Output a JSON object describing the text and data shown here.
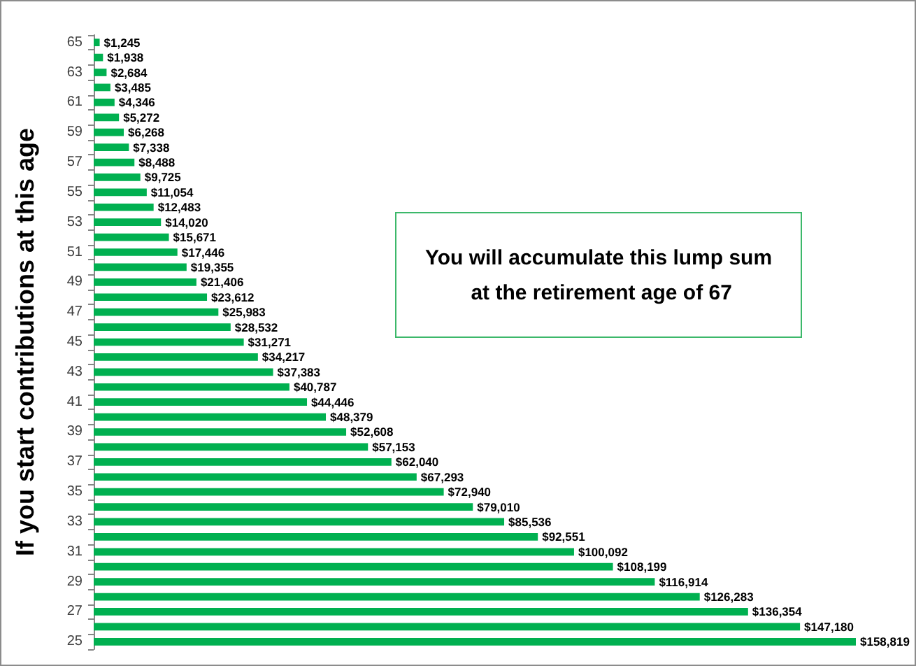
{
  "chart_data": {
    "type": "bar",
    "orientation": "horizontal",
    "ylabel": "If you start contributions at this age",
    "tick_labels": "y",
    "color": "#00b050",
    "categories": [
      "65",
      null,
      "63",
      null,
      "61",
      null,
      "59",
      null,
      "57",
      null,
      "55",
      null,
      "53",
      null,
      "51",
      null,
      "49",
      null,
      "47",
      null,
      "45",
      null,
      "43",
      null,
      "41",
      null,
      "39",
      null,
      "37",
      null,
      "35",
      null,
      "33",
      null,
      "31",
      null,
      "29",
      null,
      "27",
      null,
      "25"
    ],
    "values": [
      1245,
      1938,
      2684,
      3485,
      4346,
      5272,
      6268,
      7338,
      8488,
      9725,
      11054,
      12483,
      14020,
      15671,
      17446,
      19355,
      21406,
      23612,
      25983,
      28532,
      31271,
      34217,
      37383,
      40787,
      44446,
      48379,
      52608,
      57153,
      62040,
      67293,
      72940,
      79010,
      85536,
      92551,
      100092,
      108199,
      116914,
      126283,
      136354,
      147180,
      158819
    ],
    "value_labels": [
      "$1,245",
      "$1,938",
      "$2,684",
      "$3,485",
      "$4,346",
      "$5,272",
      "$6,268",
      "$7,338",
      "$8,488",
      "$9,725",
      "$11,054",
      "$12,483",
      "$14,020",
      "$15,671",
      "$17,446",
      "$19,355",
      "$21,406",
      "$23,612",
      "$25,983",
      "$28,532",
      "$31,271",
      "$34,217",
      "$37,383",
      "$40,787",
      "$44,446",
      "$48,379",
      "$52,608",
      "$57,153",
      "$62,040",
      "$67,293",
      "$72,940",
      "$79,010",
      "$85,536",
      "$92,551",
      "$100,092",
      "$108,199",
      "$116,914",
      "$126,283",
      "$136,354",
      "$147,180",
      "$158,819"
    ],
    "annotations": [
      "You will accumulate this lump sum at the retirement age of 67"
    ]
  }
}
